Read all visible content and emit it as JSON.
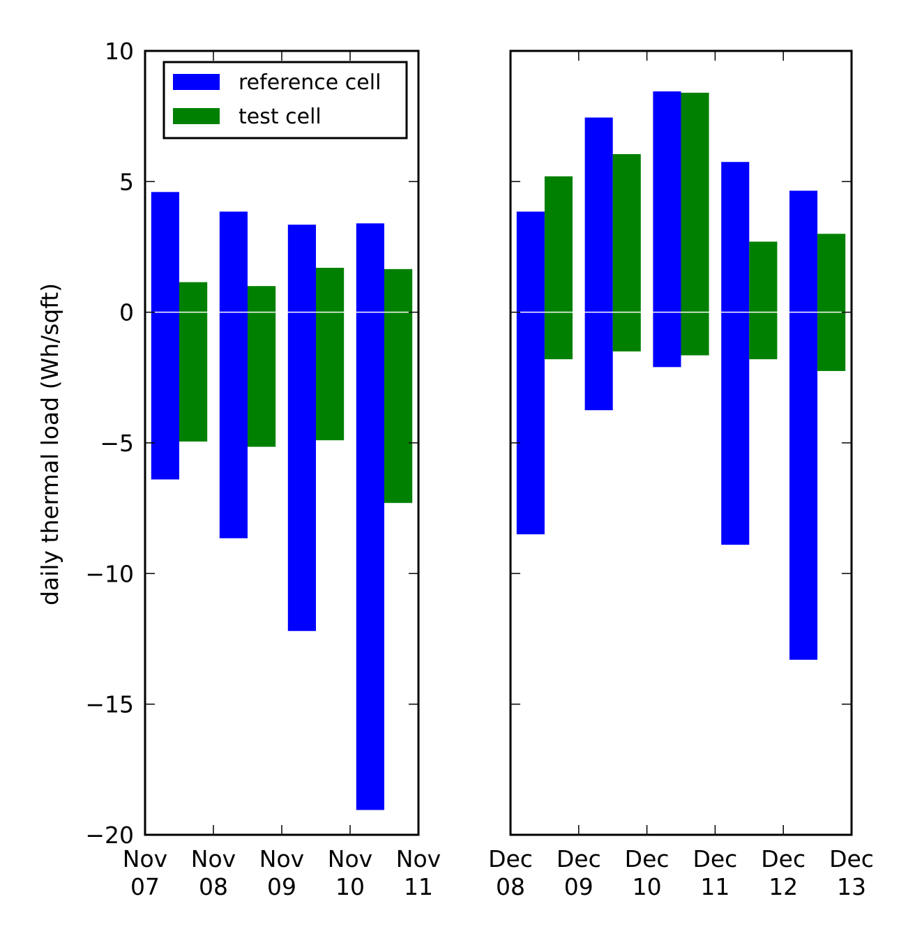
{
  "chart_data": {
    "type": "bar",
    "ylabel": "daily thermal load (Wh/sqft)",
    "ylim": [
      -20,
      10
    ],
    "yticks": [
      10,
      5,
      0,
      -5,
      -10,
      -15,
      -20
    ],
    "ytick_labels": [
      "10",
      "5",
      "0",
      "−5",
      "−10",
      "−15",
      "−20"
    ],
    "legend": {
      "placement": "upper left of left panel",
      "entries": [
        "reference cell",
        "test cell"
      ]
    },
    "series_colors": {
      "reference cell": "#0000ff",
      "test cell": "#008000"
    },
    "zero_line_color": "#ffffff",
    "panels": [
      {
        "xticks": [
          {
            "month": "Nov",
            "day": "07"
          },
          {
            "month": "Nov",
            "day": "08"
          },
          {
            "month": "Nov",
            "day": "09"
          },
          {
            "month": "Nov",
            "day": "10"
          },
          {
            "month": "Nov",
            "day": "11"
          }
        ],
        "days": [
          {
            "reference_heating": 4.6,
            "reference_cooling": -6.4,
            "test_heating": 1.15,
            "test_cooling": -4.95
          },
          {
            "reference_heating": 3.85,
            "reference_cooling": -8.65,
            "test_heating": 1.0,
            "test_cooling": -5.15
          },
          {
            "reference_heating": 3.35,
            "reference_cooling": -12.2,
            "test_heating": 1.7,
            "test_cooling": -4.9
          },
          {
            "reference_heating": 3.4,
            "reference_cooling": -19.05,
            "test_heating": 1.65,
            "test_cooling": -7.3
          }
        ]
      },
      {
        "xticks": [
          {
            "month": "Dec",
            "day": "08"
          },
          {
            "month": "Dec",
            "day": "09"
          },
          {
            "month": "Dec",
            "day": "10"
          },
          {
            "month": "Dec",
            "day": "11"
          },
          {
            "month": "Dec",
            "day": "12"
          },
          {
            "month": "Dec",
            "day": "13"
          }
        ],
        "days": [
          {
            "reference_heating": 3.85,
            "reference_cooling": -8.5,
            "test_heating": 5.2,
            "test_cooling": -1.8
          },
          {
            "reference_heating": 7.45,
            "reference_cooling": -3.75,
            "test_heating": 6.05,
            "test_cooling": -1.5
          },
          {
            "reference_heating": 8.45,
            "reference_cooling": -2.1,
            "test_heating": 8.4,
            "test_cooling": -1.65
          },
          {
            "reference_heating": 5.75,
            "reference_cooling": -8.9,
            "test_heating": 2.7,
            "test_cooling": -1.8
          },
          {
            "reference_heating": 4.65,
            "reference_cooling": -13.3,
            "test_heating": 3.0,
            "test_cooling": -2.25
          }
        ]
      }
    ]
  }
}
